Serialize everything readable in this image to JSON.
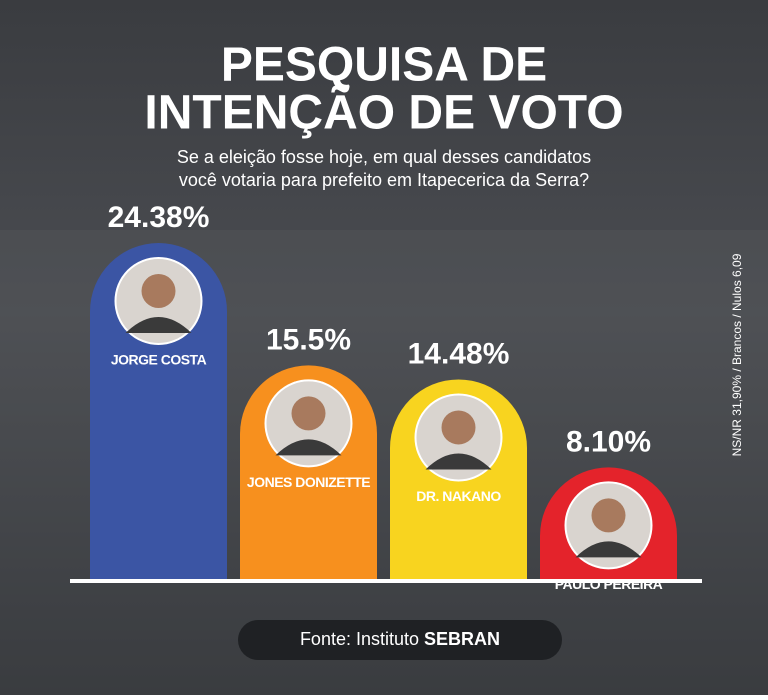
{
  "chart_data": {
    "type": "bar",
    "title_lines": [
      "PESQUISA DE",
      "INTENÇÃO DE VOTO"
    ],
    "subtitle_lines": [
      "Se a eleição fosse hoje, em qual desses candidatos",
      "você votaria para prefeito em Itapecerica da Serra?"
    ],
    "categories": [
      "JORGE COSTA",
      "JONES DONIZETTE",
      "DR. NAKANO",
      "PAULO PEREIRA"
    ],
    "values": [
      24.38,
      15.5,
      14.48,
      8.1
    ],
    "value_labels": [
      "24.38%",
      "15.5%",
      "14.48%",
      "8.10%"
    ],
    "colors": [
      "#3b55a4",
      "#f7901e",
      "#f8d41f",
      "#e4232b"
    ],
    "side_note": "NS/NR 31,90% / Brancos / Nulos 6,09",
    "source": {
      "prefix": "Fonte: Instituto",
      "name": "SEBRAN"
    }
  }
}
